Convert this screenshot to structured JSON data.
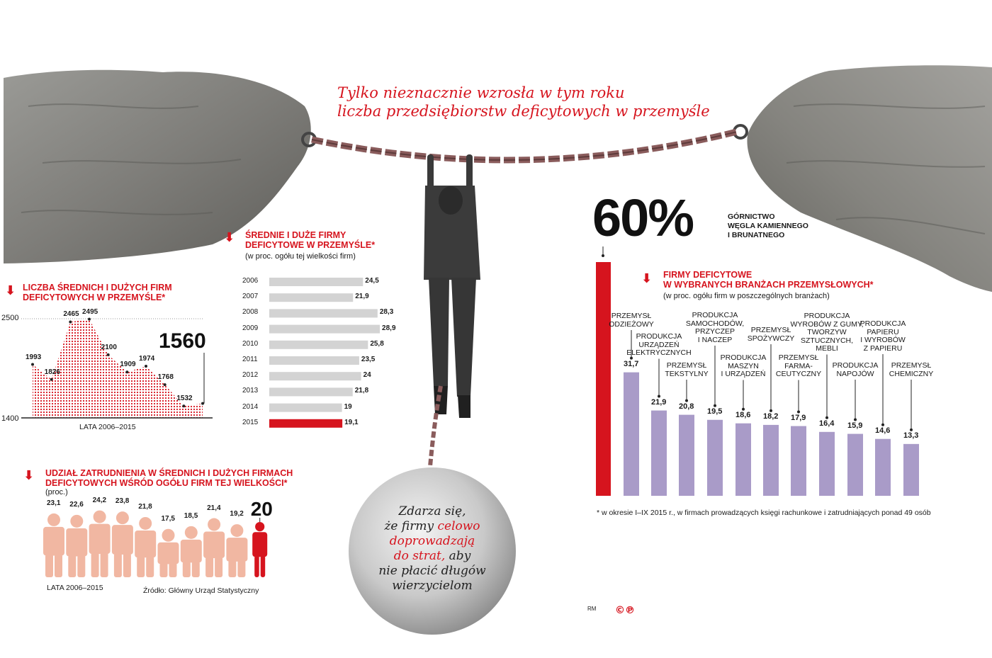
{
  "title_line1": "Tylko nieznacznie wzrosła w tym roku",
  "title_line2": "liczba przedsiębiorstw deficytowych w przemyśle",
  "colors": {
    "accent": "#d6141e",
    "bar_gray": "#d3d3d3",
    "bar_purple": "#a99bc8",
    "figure_salmon": "#f1b7a2"
  },
  "ball": {
    "line1": "Zdarza się,",
    "line2": "że firmy",
    "line2_red": "celowo",
    "line3_red": "doprowadzają",
    "line4_red": "do strat,",
    "line4": "aby",
    "line5": "nie płacić długów",
    "line6": "wierzycielom"
  },
  "footnote": "* w okresie I–IX 2015 r., w firmach prowadzących księgi rachunkowe i zatrudniających ponad 49 osób",
  "credit": "RM",
  "logo_text": "©℗",
  "chart_data": [
    {
      "type": "area",
      "title_line1": "LICZBA ŚREDNICH I DUŻYCH FIRM",
      "title_line2": "DEFICYTOWYCH W PRZEMYŚLE*",
      "xlabel": "LATA 2006–2015",
      "x": [
        2006,
        2007,
        2008,
        2009,
        2010,
        2011,
        2012,
        2013,
        2014,
        2015
      ],
      "values": [
        1993,
        1826,
        2465,
        2495,
        2100,
        1909,
        1974,
        1768,
        1532,
        1560
      ],
      "ytick_labels": [
        "2500",
        "1400"
      ],
      "ylim": [
        1400,
        2500
      ],
      "highlight_label": "1560"
    },
    {
      "type": "bar",
      "title_line1": "ŚREDNIE I DUŻE FIRMY",
      "title_line2": "DEFICYTOWE W PRZEMYŚLE*",
      "subtitle": "(w proc. ogółu tej wielkości firm)",
      "categories": [
        "2006",
        "2007",
        "2008",
        "2009",
        "2010",
        "2011",
        "2012",
        "2013",
        "2014",
        "2015"
      ],
      "values": [
        24.5,
        21.9,
        28.3,
        28.9,
        25.8,
        23.5,
        24,
        21.8,
        19,
        19.1
      ],
      "value_labels": [
        "24,5",
        "21,9",
        "28,3",
        "28,9",
        "25,8",
        "23,5",
        "24",
        "21,8",
        "19",
        "19,1"
      ],
      "xlim": [
        0,
        30
      ]
    },
    {
      "type": "bar",
      "title_line1": "UDZIAŁ ZATRUDNIENIA W ŚREDNICH I DUŻYCH FIRMACH",
      "title_line2": "DEFICYTOWYCH WŚRÓD OGÓŁU FIRM TEJ WIELKOŚCI*",
      "subtitle": "(proc.)",
      "xlabel": "LATA 2006–2015",
      "source": "Źródło: Główny Urząd Statystyczny",
      "values": [
        23.1,
        22.6,
        24.2,
        23.8,
        21.8,
        17.5,
        18.5,
        21.4,
        19.2,
        20
      ],
      "value_labels": [
        "23,1",
        "22,6",
        "24,2",
        "23,8",
        "21,8",
        "17,5",
        "18,5",
        "21,4",
        "19,2",
        "20"
      ]
    },
    {
      "type": "bar",
      "title_line1": "FIRMY DEFICYTOWE",
      "title_line2": "W WYBRANYCH BRANŻACH PRZEMYSŁOWYCH*",
      "subtitle": "(w proc. ogółu firm w poszczególnych branżach)",
      "highlight": {
        "value": 60,
        "label": "60%",
        "cap_lines": [
          "GÓRNICTWO",
          "WĘGLA KAMIENNEGO",
          "I BRUNATNEGO"
        ]
      },
      "categories": [
        [
          "PRZEMYSŁ",
          "ODZIEŻOWY"
        ],
        [
          "PRODUKCJA",
          "URZĄDZEŃ",
          "ELEKTRYCZNYCH"
        ],
        [
          "PRZEMYSŁ",
          "TEKSTYLNY"
        ],
        [
          "PRODUKCJA",
          "SAMOCHODÓW,",
          "PRZYCZEP",
          "I NACZEP"
        ],
        [
          "PRODUKCJA",
          "MASZYN",
          "I URZĄDZEŃ"
        ],
        [
          "PRZEMYSŁ",
          "SPOŻYWCZY"
        ],
        [
          "PRZEMYSŁ",
          "FARMA-",
          "CEUTYCZNY"
        ],
        [
          "PRODUKCJA",
          "WYROBÓW Z GUMY,",
          "TWORZYW",
          "SZTUCZNYCH,",
          "MEBLI"
        ],
        [
          "PRODUKCJA",
          "NAPOJÓW"
        ],
        [
          "PRODUKCJA",
          "PAPIERU",
          "I WYROBÓW",
          "Z PAPIERU"
        ],
        [
          "PRZEMYSŁ",
          "CHEMICZNY"
        ]
      ],
      "values": [
        31.7,
        21.9,
        20.8,
        19.5,
        18.6,
        18.2,
        17.9,
        16.4,
        15.9,
        14.6,
        13.3
      ],
      "value_labels": [
        "31,7",
        "21,9",
        "20,8",
        "19,5",
        "18,6",
        "18,2",
        "17,9",
        "16,4",
        "15,9",
        "14,6",
        "13,3"
      ]
    }
  ]
}
